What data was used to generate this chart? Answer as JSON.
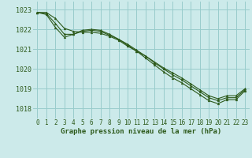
{
  "title": "Graphe pression niveau de la mer (hPa)",
  "bg_color": "#cceaea",
  "grid_color": "#99cccc",
  "line_color": "#2d5a1b",
  "x_min": 0,
  "x_max": 23,
  "y_min": 1017.5,
  "y_max": 1023.4,
  "yticks": [
    1018,
    1019,
    1020,
    1021,
    1022,
    1023
  ],
  "xticks": [
    0,
    1,
    2,
    3,
    4,
    5,
    6,
    7,
    8,
    9,
    10,
    11,
    12,
    13,
    14,
    15,
    16,
    17,
    18,
    19,
    20,
    21,
    22,
    23
  ],
  "series": [
    [
      1022.85,
      1022.85,
      1022.55,
      1022.05,
      1021.9,
      1021.85,
      1021.85,
      1021.8,
      1021.65,
      1021.45,
      1021.15,
      1020.9,
      1020.65,
      1020.35,
      1020.05,
      1019.8,
      1019.55,
      1019.25,
      1018.95,
      1018.65,
      1018.5,
      1018.65,
      1018.65,
      1019.0
    ],
    [
      1022.85,
      1022.8,
      1022.3,
      1021.75,
      1021.75,
      1021.9,
      1021.95,
      1021.9,
      1021.7,
      1021.5,
      1021.25,
      1020.95,
      1020.65,
      1020.3,
      1020.0,
      1019.7,
      1019.45,
      1019.15,
      1018.85,
      1018.55,
      1018.4,
      1018.55,
      1018.55,
      1018.95
    ],
    [
      1022.85,
      1022.75,
      1022.1,
      1021.6,
      1021.75,
      1021.95,
      1022.0,
      1021.95,
      1021.75,
      1021.5,
      1021.2,
      1020.9,
      1020.55,
      1020.2,
      1019.85,
      1019.55,
      1019.3,
      1019.0,
      1018.7,
      1018.4,
      1018.25,
      1018.45,
      1018.45,
      1018.9
    ]
  ],
  "label_fontsize": 6,
  "tick_fontsize": 5.5,
  "xlabel_fontsize": 6.5
}
